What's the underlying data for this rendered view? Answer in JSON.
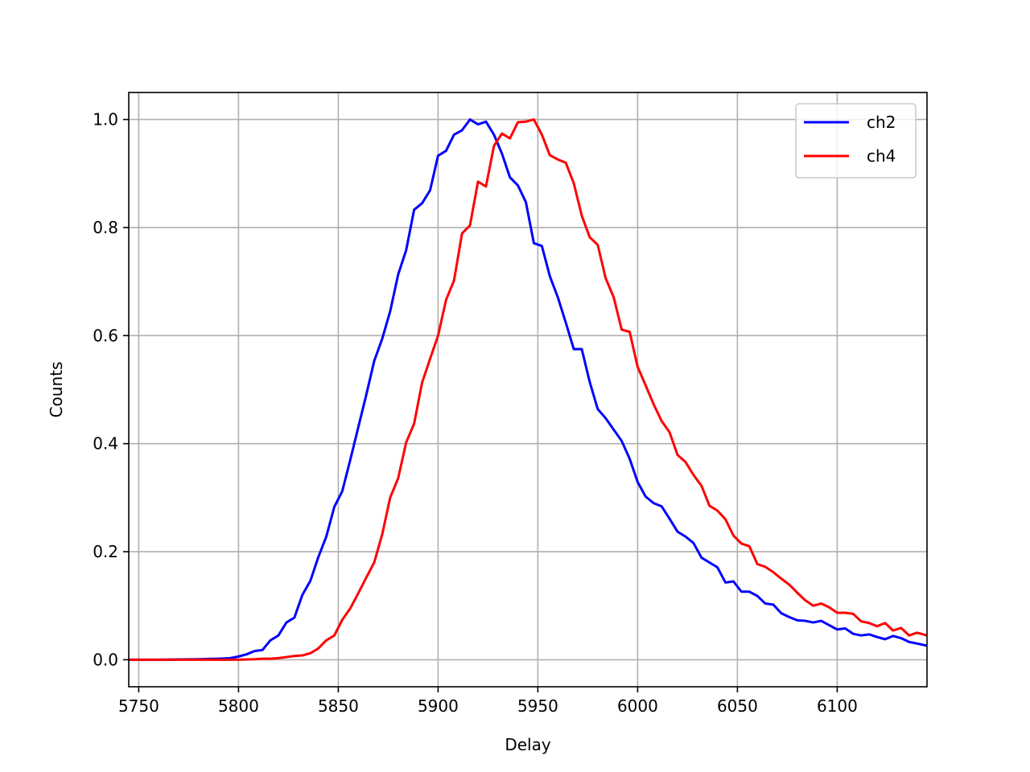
{
  "chart_data": {
    "type": "line",
    "title": "",
    "xlabel": "Delay",
    "ylabel": "Counts",
    "xlim": [
      5745,
      6145
    ],
    "ylim": [
      -0.05,
      1.05
    ],
    "xticks": [
      5750,
      5800,
      5850,
      5900,
      5950,
      6000,
      6050,
      6100
    ],
    "xtick_labels": [
      "5750",
      "5800",
      "5850",
      "5900",
      "5950",
      "6000",
      "6050",
      "6100"
    ],
    "yticks": [
      0.0,
      0.2,
      0.4,
      0.6,
      0.8,
      1.0
    ],
    "ytick_labels": [
      "0.0",
      "0.2",
      "0.4",
      "0.6",
      "0.8",
      "1.0"
    ],
    "grid": true,
    "legend_position": "top-right",
    "series": [
      {
        "name": "ch2",
        "color": "#0000ff",
        "x": [
          5745,
          5760,
          5780,
          5790,
          5796,
          5800,
          5804,
          5808,
          5812,
          5816,
          5820,
          5824,
          5828,
          5832,
          5836,
          5840,
          5844,
          5848,
          5852,
          5856,
          5860,
          5864,
          5868,
          5872,
          5876,
          5880,
          5884,
          5888,
          5892,
          5896,
          5900,
          5904,
          5908,
          5912,
          5916,
          5920,
          5924,
          5928,
          5932,
          5936,
          5940,
          5944,
          5948,
          5952,
          5956,
          5960,
          5964,
          5968,
          5972,
          5976,
          5980,
          5984,
          5988,
          5992,
          5996,
          6000,
          6004,
          6008,
          6012,
          6016,
          6020,
          6024,
          6028,
          6032,
          6036,
          6040,
          6044,
          6048,
          6052,
          6056,
          6060,
          6064,
          6068,
          6072,
          6076,
          6080,
          6084,
          6088,
          6092,
          6096,
          6100,
          6104,
          6108,
          6112,
          6116,
          6120,
          6124,
          6128,
          6132,
          6136,
          6140,
          6145
        ],
        "y": [
          0.0,
          0.0,
          0.001,
          0.002,
          0.003,
          0.006,
          0.01,
          0.016,
          0.018,
          0.036,
          0.045,
          0.069,
          0.078,
          0.12,
          0.146,
          0.19,
          0.228,
          0.283,
          0.312,
          0.37,
          0.43,
          0.49,
          0.553,
          0.594,
          0.645,
          0.713,
          0.758,
          0.833,
          0.845,
          0.869,
          0.933,
          0.942,
          0.972,
          0.98,
          1.0,
          0.991,
          0.996,
          0.972,
          0.937,
          0.893,
          0.878,
          0.847,
          0.771,
          0.766,
          0.71,
          0.671,
          0.624,
          0.575,
          0.575,
          0.514,
          0.464,
          0.447,
          0.426,
          0.405,
          0.372,
          0.329,
          0.302,
          0.29,
          0.284,
          0.261,
          0.237,
          0.228,
          0.216,
          0.189,
          0.18,
          0.171,
          0.143,
          0.145,
          0.126,
          0.126,
          0.118,
          0.104,
          0.102,
          0.086,
          0.079,
          0.073,
          0.072,
          0.069,
          0.072,
          0.064,
          0.056,
          0.058,
          0.048,
          0.045,
          0.047,
          0.042,
          0.038,
          0.044,
          0.04,
          0.033,
          0.03,
          0.026
        ]
      },
      {
        "name": "ch4",
        "color": "#ff0000",
        "x": [
          5745,
          5760,
          5780,
          5800,
          5808,
          5812,
          5816,
          5820,
          5824,
          5828,
          5832,
          5836,
          5840,
          5844,
          5848,
          5852,
          5856,
          5860,
          5864,
          5868,
          5872,
          5876,
          5880,
          5884,
          5888,
          5892,
          5896,
          5900,
          5904,
          5908,
          5912,
          5916,
          5920,
          5924,
          5928,
          5932,
          5936,
          5940,
          5944,
          5948,
          5952,
          5956,
          5960,
          5964,
          5968,
          5972,
          5976,
          5980,
          5984,
          5988,
          5992,
          5996,
          6000,
          6004,
          6008,
          6012,
          6016,
          6020,
          6024,
          6028,
          6032,
          6036,
          6040,
          6044,
          6048,
          6052,
          6056,
          6060,
          6064,
          6068,
          6072,
          6076,
          6080,
          6084,
          6088,
          6092,
          6096,
          6100,
          6104,
          6108,
          6112,
          6116,
          6120,
          6124,
          6128,
          6132,
          6136,
          6140,
          6145
        ],
        "y": [
          0.0,
          0.0,
          0.0,
          0.0,
          0.001,
          0.002,
          0.002,
          0.003,
          0.005,
          0.007,
          0.008,
          0.012,
          0.021,
          0.036,
          0.045,
          0.074,
          0.095,
          0.123,
          0.152,
          0.18,
          0.232,
          0.3,
          0.336,
          0.402,
          0.437,
          0.513,
          0.557,
          0.6,
          0.666,
          0.702,
          0.789,
          0.804,
          0.885,
          0.876,
          0.951,
          0.974,
          0.965,
          0.995,
          0.996,
          1.0,
          0.972,
          0.934,
          0.926,
          0.92,
          0.882,
          0.822,
          0.782,
          0.768,
          0.706,
          0.671,
          0.611,
          0.607,
          0.542,
          0.508,
          0.473,
          0.442,
          0.421,
          0.379,
          0.366,
          0.342,
          0.322,
          0.285,
          0.276,
          0.26,
          0.23,
          0.215,
          0.21,
          0.177,
          0.172,
          0.162,
          0.15,
          0.139,
          0.124,
          0.11,
          0.1,
          0.104,
          0.097,
          0.087,
          0.087,
          0.085,
          0.071,
          0.068,
          0.062,
          0.068,
          0.054,
          0.059,
          0.045,
          0.05,
          0.045
        ]
      }
    ]
  }
}
